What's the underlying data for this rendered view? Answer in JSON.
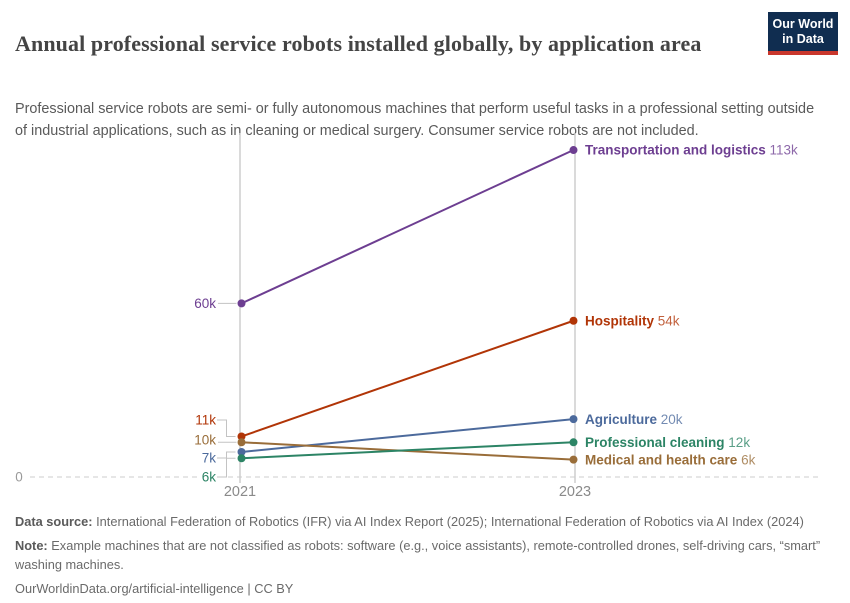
{
  "header": {
    "title": "Annual professional service robots installed globally, by application area",
    "subtitle": "Professional service robots are semi- or fully autonomous machines that perform useful tasks in a professional setting outside of industrial applications, such as in cleaning or medical surgery. Consumer service robots are not included.",
    "logo": {
      "line1": "Our World",
      "line2": "in Data",
      "bg_color": "#102d50",
      "stripe_color": "#c9372c"
    }
  },
  "chart_data": {
    "type": "line",
    "title": "Annual professional service robots installed globally, by application area",
    "x": [
      2021,
      2023
    ],
    "x_labels": [
      "2021",
      "2023"
    ],
    "ylim": [
      0,
      120000
    ],
    "baseline_label": "0",
    "legend_position": "right-inline",
    "grid": "vertical-only",
    "axis_color": "#cbcbcb",
    "series": [
      {
        "name": "Transportation and logistics",
        "color": "#6d3e91",
        "values": [
          60000,
          113000
        ],
        "start_label": "60k",
        "end_label": "113k"
      },
      {
        "name": "Hospitality",
        "color": "#b13507",
        "values": [
          11000,
          54000
        ],
        "start_label": "11k",
        "end_label": "54k"
      },
      {
        "name": "Agriculture",
        "color": "#4c6a9c",
        "values": [
          7000,
          20000
        ],
        "start_label": "7k",
        "end_label": "20k"
      },
      {
        "name": "Professional cleaning",
        "color": "#2c8465",
        "values": [
          6000,
          12000
        ],
        "start_label": "6k",
        "end_label": "12k"
      },
      {
        "name": "Medical and health care",
        "color": "#996d39",
        "values": [
          10000,
          6000
        ],
        "start_label": "10k",
        "end_label": "6k"
      }
    ]
  },
  "footer": {
    "source_label": "Data source:",
    "source_text": "International Federation of Robotics (IFR) via AI Index Report (2025); International Federation of Robotics via AI Index (2024)",
    "note_label": "Note:",
    "note_text": "Example machines that are not classified as robots: software (e.g., voice assistants), remote-controlled drones, self-driving cars, “smart” washing machines.",
    "link": "OurWorldinData.org/artificial-intelligence | CC BY"
  }
}
